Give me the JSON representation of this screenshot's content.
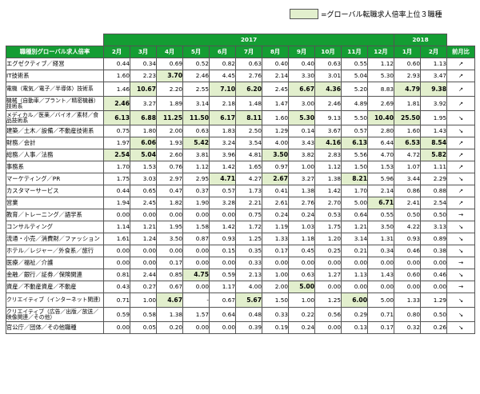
{
  "legend": {
    "text": "=グローバル転職求人倍率上位３職種",
    "color": "#e2efcd"
  },
  "header_color": "#149d33",
  "years": [
    "2017",
    "2018"
  ],
  "header": {
    "category": "職種別グローバル求人倍率",
    "months": [
      "2月",
      "3月",
      "4月",
      "5月",
      "6月",
      "7月",
      "8月",
      "9月",
      "10月",
      "11月",
      "12月",
      "1月",
      "2月"
    ],
    "change": "前月比"
  },
  "rows": [
    {
      "name": "エグゼクティブ／経営",
      "values": [
        "0.44",
        "0.34",
        "0.69",
        "0.52",
        "0.82",
        "0.63",
        "0.40",
        "0.40",
        "0.63",
        "0.55",
        "1.12",
        "0.60",
        "1.13"
      ],
      "hl": [],
      "arrow": "↗"
    },
    {
      "name": "IT技術系",
      "values": [
        "1.60",
        "2.23",
        "3.70",
        "2.46",
        "4.45",
        "2.76",
        "2.14",
        "3.30",
        "3.01",
        "5.04",
        "5.30",
        "2.93",
        "3.47"
      ],
      "hl": [
        2
      ],
      "arrow": "↗"
    },
    {
      "name": "電機（電気／電子／半導体）技術系",
      "values": [
        "1.46",
        "10.67",
        "2.20",
        "2.55",
        "7.10",
        "6.20",
        "2.45",
        "6.67",
        "4.36",
        "5.20",
        "8.83",
        "4.79",
        "9.38"
      ],
      "hl": [
        1,
        4,
        5,
        7,
        8,
        11,
        12
      ],
      "arrow": "↗"
    },
    {
      "name": "機械（自動車／プラント／精密機器）技術系",
      "values": [
        "2.46",
        "3.27",
        "1.89",
        "3.14",
        "2.18",
        "1.48",
        "1.47",
        "3.00",
        "2.46",
        "4.89",
        "2.69",
        "1.81",
        "3.92"
      ],
      "hl": [
        0
      ],
      "arrow": "↗"
    },
    {
      "name": "メディカル／医薬／バイオ／素材／食品技術系",
      "values": [
        "6.13",
        "6.88",
        "11.25",
        "11.50",
        "6.17",
        "8.11",
        "1.60",
        "5.30",
        "9.13",
        "5.50",
        "10.40",
        "25.50",
        "1.95"
      ],
      "hl": [
        0,
        1,
        2,
        3,
        4,
        5,
        7,
        10,
        11
      ],
      "arrow": "↘"
    },
    {
      "name": "建築／土木／設備／不動産技術系",
      "values": [
        "0.75",
        "1.80",
        "2.00",
        "0.63",
        "1.83",
        "2.50",
        "1.29",
        "0.14",
        "3.67",
        "0.57",
        "2.80",
        "1.60",
        "1.43"
      ],
      "hl": [],
      "arrow": "↘"
    },
    {
      "name": "財務／会計",
      "values": [
        "1.97",
        "6.06",
        "1.93",
        "5.42",
        "3.24",
        "3.54",
        "4.00",
        "3.43",
        "4.16",
        "6.13",
        "6.44",
        "6.53",
        "8.54"
      ],
      "hl": [
        1,
        3,
        8,
        9,
        11,
        12
      ],
      "arrow": "↗"
    },
    {
      "name": "総務／人事／法務",
      "values": [
        "2.54",
        "5.04",
        "2.60",
        "3.81",
        "3.96",
        "4.81",
        "3.50",
        "3.82",
        "2.83",
        "5.56",
        "4.70",
        "4.72",
        "5.82"
      ],
      "hl": [
        0,
        1,
        6,
        12
      ],
      "arrow": "↗"
    },
    {
      "name": "事務系",
      "values": [
        "1.70",
        "1.53",
        "0.76",
        "1.12",
        "1.42",
        "1.65",
        "0.97",
        "1.00",
        "1.12",
        "1.50",
        "1.53",
        "1.07",
        "1.11"
      ],
      "hl": [],
      "arrow": "↗"
    },
    {
      "name": "マーケティング／PR",
      "values": [
        "1.75",
        "3.03",
        "2.97",
        "2.95",
        "4.71",
        "4.27",
        "2.67",
        "3.27",
        "1.38",
        "8.21",
        "5.96",
        "3.44",
        "2.29"
      ],
      "hl": [
        4,
        6,
        9
      ],
      "arrow": "↘"
    },
    {
      "name": "カスタマーサービス",
      "values": [
        "0.44",
        "0.65",
        "0.47",
        "0.37",
        "0.57",
        "1.73",
        "0.41",
        "1.38",
        "1.42",
        "1.70",
        "2.14",
        "0.86",
        "0.88"
      ],
      "hl": [],
      "arrow": "↗"
    },
    {
      "name": "営業",
      "values": [
        "1.94",
        "2.45",
        "1.82",
        "1.90",
        "3.28",
        "2.21",
        "2.61",
        "2.76",
        "2.70",
        "5.00",
        "6.71",
        "2.41",
        "2.54"
      ],
      "hl": [
        10
      ],
      "arrow": "↗"
    },
    {
      "name": "教育／トレーニング／語学系",
      "values": [
        "0.00",
        "0.00",
        "0.00",
        "0.00",
        "0.00",
        "0.75",
        "0.24",
        "0.24",
        "0.53",
        "0.64",
        "0.55",
        "0.50",
        "0.50"
      ],
      "hl": [],
      "arrow": "→"
    },
    {
      "name": "コンサルティング",
      "values": [
        "1.14",
        "1.21",
        "1.95",
        "1.58",
        "1.42",
        "1.72",
        "1.19",
        "1.03",
        "1.75",
        "1.21",
        "3.50",
        "4.22",
        "3.13"
      ],
      "hl": [],
      "arrow": "↘"
    },
    {
      "name": "流通・小売／消費財／ファッション",
      "values": [
        "1.61",
        "1.24",
        "3.50",
        "0.87",
        "0.93",
        "1.25",
        "1.33",
        "1.18",
        "1.20",
        "3.14",
        "1.31",
        "0.93",
        "0.89"
      ],
      "hl": [],
      "arrow": "↘"
    },
    {
      "name": "ホテル／レジャー／外食系／旅行",
      "values": [
        "0.00",
        "0.00",
        "0.00",
        "0.00",
        "0.15",
        "0.35",
        "0.17",
        "0.45",
        "0.25",
        "0.21",
        "0.34",
        "0.46",
        "0.38"
      ],
      "hl": [],
      "arrow": "↘"
    },
    {
      "name": "医療／福祉／介護",
      "values": [
        "0.00",
        "0.00",
        "0.17",
        "0.00",
        "0.00",
        "0.33",
        "0.00",
        "0.00",
        "0.00",
        "0.00",
        "0.00",
        "0.00",
        "0.00"
      ],
      "hl": [],
      "arrow": "→"
    },
    {
      "name": "金融／銀行／証券／保険関連",
      "values": [
        "0.81",
        "2.44",
        "0.85",
        "4.75",
        "0.59",
        "2.13",
        "1.00",
        "0.63",
        "1.27",
        "1.13",
        "1.43",
        "0.60",
        "0.46"
      ],
      "hl": [
        3
      ],
      "arrow": "↘"
    },
    {
      "name": "資産／不動産資産／不動産",
      "values": [
        "0.43",
        "0.27",
        "0.67",
        "0.00",
        "1.17",
        "4.00",
        "2.00",
        "5.00",
        "0.00",
        "0.00",
        "0.00",
        "0.00",
        "0.00"
      ],
      "hl": [
        7
      ],
      "arrow": "→"
    },
    {
      "name": "クリエイティブ（インターネット関連）",
      "values": [
        "0.71",
        "1.00",
        "4.67",
        "-",
        "0.67",
        "5.67",
        "1.50",
        "1.00",
        "1.25",
        "6.00",
        "5.00",
        "1.33",
        "1.29"
      ],
      "hl": [
        2,
        5,
        9
      ],
      "arrow": "↘"
    },
    {
      "name": "クリエイティブ（広告／出版／放送／映像関連／その他）",
      "values": [
        "0.59",
        "0.58",
        "1.38",
        "1.57",
        "0.64",
        "0.48",
        "0.33",
        "0.22",
        "0.56",
        "0.29",
        "0.71",
        "0.80",
        "0.50"
      ],
      "hl": [],
      "arrow": "↘"
    },
    {
      "name": "官公庁／団体／その他職種",
      "values": [
        "0.00",
        "0.05",
        "0.20",
        "0.00",
        "0.00",
        "0.39",
        "0.19",
        "0.24",
        "0.00",
        "0.13",
        "0.17",
        "0.32",
        "0.26"
      ],
      "hl": [],
      "arrow": "↘"
    }
  ]
}
